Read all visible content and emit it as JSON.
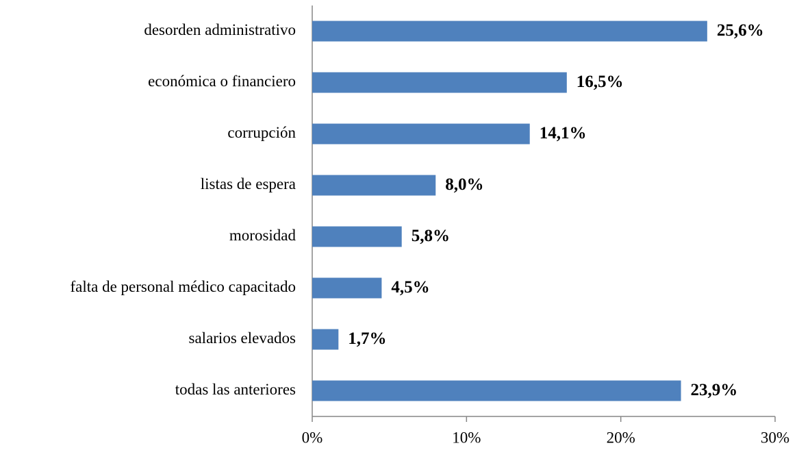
{
  "chart_data": {
    "type": "bar",
    "orientation": "horizontal",
    "categories": [
      "desorden administrativo",
      "económica o financiero",
      "corrupción",
      "listas de espera",
      "morosidad",
      "falta de personal médico capacitado",
      "salarios elevados",
      "todas las anteriores"
    ],
    "values": [
      25.6,
      16.5,
      14.1,
      8.0,
      5.8,
      4.5,
      1.7,
      23.9
    ],
    "value_labels": [
      "25,6%",
      "16,5%",
      "14,1%",
      "8,0%",
      "5,8%",
      "4,5%",
      "1,7%",
      "23,9%"
    ],
    "color": "#4f81bd",
    "xlim": [
      0,
      30
    ],
    "xticks": [
      {
        "value": 0,
        "label": "0%"
      },
      {
        "value": 10,
        "label": "10%"
      },
      {
        "value": 20,
        "label": "20%"
      },
      {
        "value": 30,
        "label": "30%"
      }
    ],
    "grid": false
  }
}
